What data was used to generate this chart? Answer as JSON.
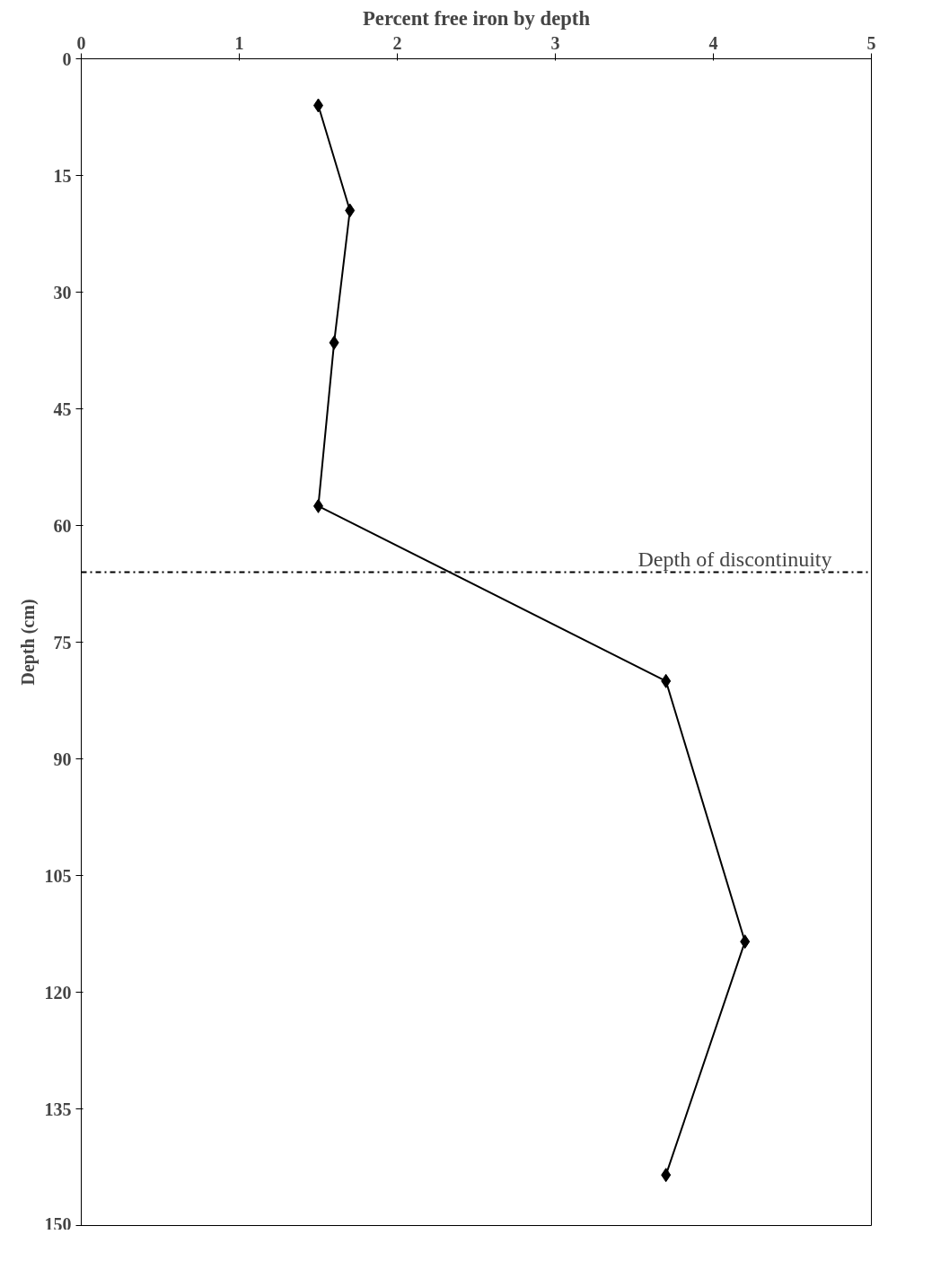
{
  "chart_data": {
    "type": "line",
    "title": "Percent free iron by depth",
    "ylabel": "Depth (cm)",
    "x": [
      1.5,
      1.7,
      1.6,
      1.5,
      3.7,
      4.2,
      3.7
    ],
    "series": [
      {
        "color": "#000000",
        "values": [
          6,
          19.5,
          36.5,
          57.5,
          80,
          113.5,
          143.5
        ]
      }
    ],
    "xlim": [
      0,
      5
    ],
    "xticks": [
      0,
      1,
      2,
      3,
      4,
      5
    ],
    "ylim": [
      150,
      0
    ],
    "yticks": [
      0,
      15,
      30,
      45,
      60,
      75,
      90,
      105,
      120,
      135,
      150
    ],
    "marker": "diamond",
    "line_style": "solid",
    "grid": false,
    "ref_lines": [
      {
        "axis": "y",
        "value": 66,
        "label": "Depth of discontinuity",
        "color": "#000000",
        "line_style": "dashdot"
      }
    ]
  }
}
